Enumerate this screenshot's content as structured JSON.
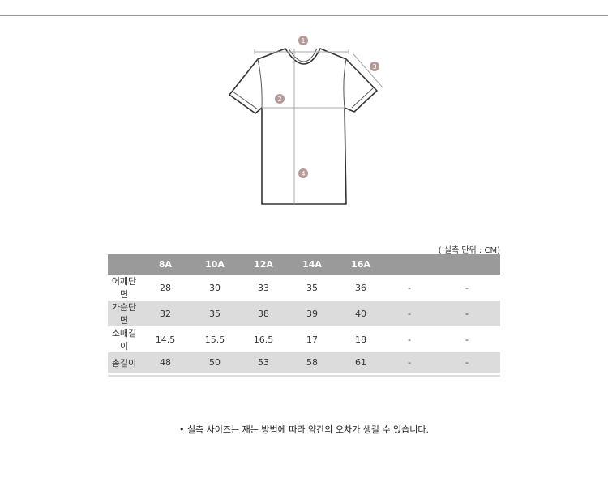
{
  "diagram": {
    "markers": [
      "1",
      "2",
      "3",
      "4"
    ],
    "marker_color": "#b39a98"
  },
  "unit_label": "( 실측 단위 : CM)",
  "table": {
    "headers": [
      "",
      "8A",
      "10A",
      "12A",
      "14A",
      "16A",
      "",
      ""
    ],
    "rows": [
      {
        "label": "어깨단면",
        "values": [
          "28",
          "30",
          "33",
          "35",
          "36",
          "-",
          "-"
        ]
      },
      {
        "label": "가슴단면",
        "values": [
          "32",
          "35",
          "38",
          "39",
          "40",
          "-",
          "-"
        ]
      },
      {
        "label": "소매길이",
        "values": [
          "14.5",
          "15.5",
          "16.5",
          "17",
          "18",
          "-",
          "-"
        ]
      },
      {
        "label": "총길이",
        "values": [
          "48",
          "50",
          "53",
          "58",
          "61",
          "-",
          "-"
        ]
      }
    ]
  },
  "note": "• 실측 사이즈는 재는 방법에 따라 약간의 오차가 생길 수 있습니다."
}
